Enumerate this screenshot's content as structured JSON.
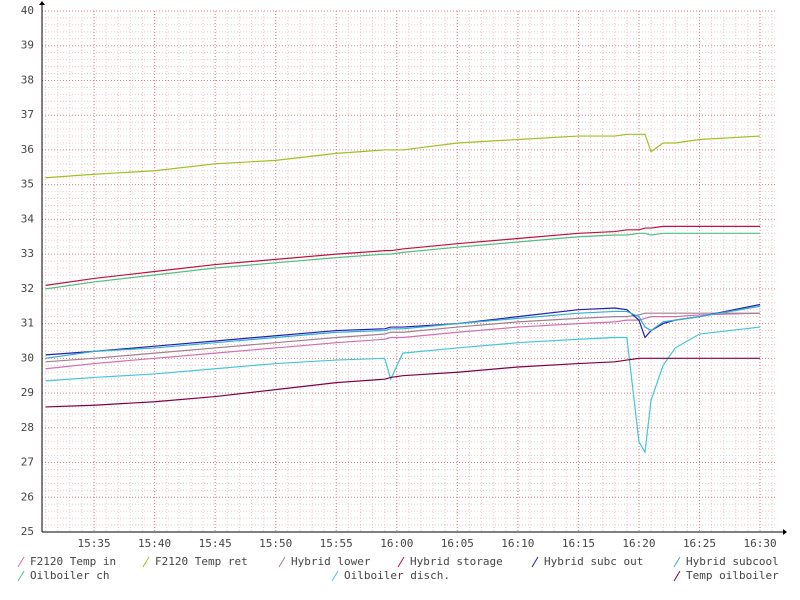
{
  "chart_data": {
    "type": "line",
    "x": [
      931,
      935,
      940,
      945,
      950,
      955,
      959,
      959.5,
      960.5,
      965,
      970,
      975,
      978,
      979,
      980,
      980.5,
      981,
      982,
      983,
      985,
      990
    ],
    "xlim": [
      930.7,
      991.4
    ],
    "xticks": [
      {
        "value": 935,
        "label": "15:35"
      },
      {
        "value": 940,
        "label": "15:40"
      },
      {
        "value": 945,
        "label": "15:45"
      },
      {
        "value": 950,
        "label": "15:50"
      },
      {
        "value": 955,
        "label": "15:55"
      },
      {
        "value": 960,
        "label": "16:00"
      },
      {
        "value": 965,
        "label": "16:05"
      },
      {
        "value": 970,
        "label": "16:10"
      },
      {
        "value": 975,
        "label": "16:15"
      },
      {
        "value": 980,
        "label": "16:20"
      },
      {
        "value": 985,
        "label": "16:25"
      },
      {
        "value": 990,
        "label": "16:30"
      }
    ],
    "ylim": [
      25,
      40
    ],
    "yticks": [
      25,
      26,
      27,
      28,
      29,
      30,
      31,
      32,
      33,
      34,
      35,
      36,
      37,
      38,
      39,
      40
    ],
    "grid": true,
    "series": [
      {
        "name": "F2120 Temp in",
        "color": "#d070b0",
        "values": [
          29.7,
          29.85,
          30.0,
          30.15,
          30.3,
          30.45,
          30.55,
          30.6,
          30.6,
          30.75,
          30.9,
          31.0,
          31.05,
          31.1,
          31.1,
          31.15,
          31.2,
          31.2,
          31.2,
          31.25,
          31.3
        ]
      },
      {
        "name": "F2120 Temp ret",
        "color": "#a0c020",
        "values": [
          35.2,
          35.3,
          35.4,
          35.6,
          35.7,
          35.9,
          36.0,
          36.0,
          36.0,
          36.2,
          36.3,
          36.4,
          36.4,
          36.45,
          36.45,
          36.45,
          35.95,
          36.2,
          36.2,
          36.3,
          36.4
        ]
      },
      {
        "name": "Hybrid lower",
        "color": "#a08090",
        "values": [
          29.9,
          30.0,
          30.15,
          30.3,
          30.45,
          30.6,
          30.7,
          30.75,
          30.75,
          30.9,
          31.05,
          31.15,
          31.2,
          31.2,
          31.25,
          31.3,
          31.3,
          31.3,
          31.3,
          31.3,
          31.3
        ]
      },
      {
        "name": "Hybrid storage",
        "color": "#c01040",
        "values": [
          32.1,
          32.3,
          32.5,
          32.7,
          32.85,
          33.0,
          33.1,
          33.1,
          33.15,
          33.3,
          33.45,
          33.6,
          33.65,
          33.7,
          33.7,
          33.75,
          33.75,
          33.8,
          33.8,
          33.8,
          33.8
        ]
      },
      {
        "name": "Hybrid subc out",
        "color": "#2020b0",
        "values": [
          30.1,
          30.2,
          30.35,
          30.5,
          30.65,
          30.8,
          30.85,
          30.9,
          30.9,
          31.0,
          31.2,
          31.4,
          31.45,
          31.4,
          31.1,
          30.6,
          30.8,
          31.0,
          31.1,
          31.2,
          31.55
        ]
      },
      {
        "name": "Hybrid subcool",
        "color": "#30b0d0",
        "values": [
          30.0,
          30.2,
          30.3,
          30.45,
          30.6,
          30.75,
          30.8,
          30.85,
          30.85,
          31.0,
          31.15,
          31.3,
          31.35,
          31.35,
          31.2,
          30.9,
          30.8,
          31.05,
          31.1,
          31.2,
          31.5
        ]
      },
      {
        "name": "Oilboiler ch",
        "color": "#50c080",
        "values": [
          32.0,
          32.2,
          32.4,
          32.6,
          32.75,
          32.9,
          33.0,
          33.0,
          33.05,
          33.2,
          33.35,
          33.5,
          33.55,
          33.55,
          33.6,
          33.6,
          33.55,
          33.6,
          33.6,
          33.6,
          33.6
        ]
      },
      {
        "name": "Oilboiler disch.",
        "color": "#40c8d8",
        "values": [
          29.35,
          29.45,
          29.55,
          29.7,
          29.85,
          29.95,
          30.0,
          29.4,
          30.15,
          30.3,
          30.45,
          30.55,
          30.6,
          30.6,
          27.6,
          27.3,
          28.8,
          29.8,
          30.3,
          30.7,
          30.9
        ]
      },
      {
        "name": "Temp oilboiler",
        "color": "#800040",
        "values": [
          28.6,
          28.65,
          28.75,
          28.9,
          29.1,
          29.3,
          29.4,
          29.45,
          29.5,
          29.6,
          29.75,
          29.85,
          29.9,
          29.95,
          30.0,
          30.0,
          30.0,
          30.0,
          30.0,
          30.0,
          30.0
        ]
      }
    ]
  }
}
